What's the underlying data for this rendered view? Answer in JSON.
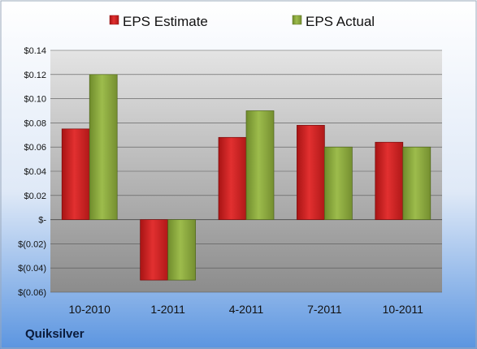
{
  "company_label": "Quiksilver",
  "colors": {
    "estimate": "#cc2020",
    "actual": "#8aab3c",
    "background_top": "#ffffff",
    "background_bottom": "#5b95e0"
  },
  "chart_data": {
    "type": "bar",
    "categories": [
      "10-2010",
      "1-2011",
      "4-2011",
      "7-2011",
      "10-2011"
    ],
    "series": [
      {
        "name": "EPS Estimate",
        "values": [
          0.075,
          -0.05,
          0.068,
          0.078,
          0.064
        ]
      },
      {
        "name": "EPS Actual",
        "values": [
          0.12,
          -0.05,
          0.09,
          0.06,
          0.06
        ]
      }
    ],
    "ylim": [
      -0.06,
      0.14
    ],
    "y_ticks": [
      {
        "value": 0.14,
        "label": "$0.14"
      },
      {
        "value": 0.12,
        "label": "$0.12"
      },
      {
        "value": 0.1,
        "label": "$0.10"
      },
      {
        "value": 0.08,
        "label": "$0.08"
      },
      {
        "value": 0.06,
        "label": "$0.06"
      },
      {
        "value": 0.04,
        "label": "$0.04"
      },
      {
        "value": 0.02,
        "label": "$0.02"
      },
      {
        "value": 0.0,
        "label": "$-"
      },
      {
        "value": -0.02,
        "label": "$(0.02)"
      },
      {
        "value": -0.04,
        "label": "$(0.04)"
      },
      {
        "value": -0.06,
        "label": "$(0.06)"
      }
    ],
    "legend_position": "top",
    "grid": true
  }
}
